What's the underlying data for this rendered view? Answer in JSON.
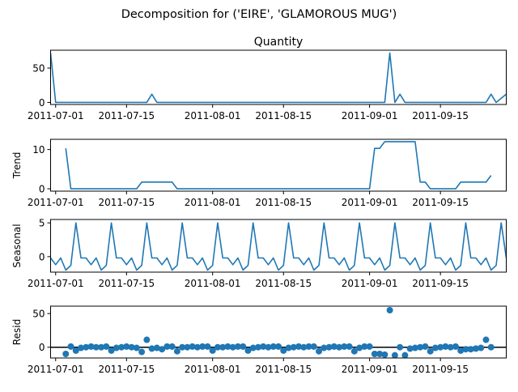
{
  "figure": {
    "title": "Decomposition for ('EIRE', 'GLAMOROUS  MUG')"
  },
  "colors": {
    "series": "#1f77b4",
    "axis": "#000000",
    "zero_line": "#000000"
  },
  "chart_data": [
    {
      "type": "line",
      "panel": "observed",
      "title": "Quantity",
      "ylabel": "",
      "start_date": "2011-06-30",
      "xlim": [
        "2011-06-30",
        "2011-09-28"
      ],
      "ylim": [
        -3,
        76
      ],
      "xticks": [
        "2011-07-01",
        "2011-07-15",
        "2011-08-01",
        "2011-08-15",
        "2011-09-01",
        "2011-09-15"
      ],
      "yticks": [
        0,
        50
      ],
      "segments": [
        {
          "x": [
            "2011-06-30",
            "2011-07-01",
            "2011-07-19",
            "2011-07-20",
            "2011-07-21",
            "2011-09-04",
            "2011-09-05",
            "2011-09-06",
            "2011-09-07",
            "2011-09-08",
            "2011-09-24",
            "2011-09-25",
            "2011-09-26",
            "2011-09-28"
          ],
          "y": [
            72,
            0,
            0,
            12,
            0,
            0,
            72,
            0,
            12,
            0,
            0,
            12,
            0,
            12
          ]
        }
      ]
    },
    {
      "type": "line",
      "panel": "trend",
      "title": "",
      "ylabel": "Trend",
      "xlim": [
        "2011-06-30",
        "2011-09-28"
      ],
      "ylim": [
        -0.6,
        12.6
      ],
      "xticks": [
        "2011-07-01",
        "2011-07-15",
        "2011-08-01",
        "2011-08-15",
        "2011-09-01",
        "2011-09-15"
      ],
      "yticks": [
        0,
        10
      ],
      "segments": [
        {
          "x": [
            "2011-07-03",
            "2011-07-04",
            "2011-07-17",
            "2011-07-18",
            "2011-07-24",
            "2011-07-25",
            "2011-09-01",
            "2011-09-02",
            "2011-09-03",
            "2011-09-04",
            "2011-09-10",
            "2011-09-11",
            "2011-09-12",
            "2011-09-13",
            "2011-09-18",
            "2011-09-19",
            "2011-09-24",
            "2011-09-25"
          ],
          "y": [
            10.3,
            0,
            0,
            1.7,
            1.7,
            0,
            0,
            10.3,
            10.3,
            12,
            12,
            1.7,
            1.7,
            0,
            0,
            1.7,
            1.7,
            3.4
          ]
        }
      ]
    },
    {
      "type": "line",
      "panel": "seasonal",
      "title": "",
      "ylabel": "Seasonal",
      "xlim": [
        "2011-06-30",
        "2011-09-28"
      ],
      "ylim": [
        -2.3,
        5.5
      ],
      "xticks": [
        "2011-07-01",
        "2011-07-15",
        "2011-08-01",
        "2011-08-15",
        "2011-09-01",
        "2011-09-15"
      ],
      "yticks": [
        0,
        5
      ],
      "period_values": [
        -0.2,
        -1.2,
        -0.2,
        -2.0,
        -1.3,
        5.0,
        -0.2
      ],
      "start_phase": 0,
      "x_start": "2011-06-30",
      "x_end": "2011-09-28"
    },
    {
      "type": "scatter",
      "panel": "resid",
      "title": "",
      "ylabel": "Resid",
      "xlim": [
        "2011-06-30",
        "2011-09-28"
      ],
      "ylim": [
        -16,
        61
      ],
      "xticks": [
        "2011-07-01",
        "2011-07-15",
        "2011-08-01",
        "2011-08-15",
        "2011-09-01",
        "2011-09-15"
      ],
      "yticks": [
        0,
        50
      ],
      "zero_line": true,
      "x": [
        "2011-07-03",
        "2011-07-04",
        "2011-07-05",
        "2011-07-06",
        "2011-07-07",
        "2011-07-08",
        "2011-07-09",
        "2011-07-10",
        "2011-07-11",
        "2011-07-12",
        "2011-07-13",
        "2011-07-14",
        "2011-07-15",
        "2011-07-16",
        "2011-07-17",
        "2011-07-18",
        "2011-07-19",
        "2011-07-20",
        "2011-07-21",
        "2011-07-22",
        "2011-07-23",
        "2011-07-24",
        "2011-07-25",
        "2011-07-26",
        "2011-07-27",
        "2011-07-28",
        "2011-07-29",
        "2011-07-30",
        "2011-07-31",
        "2011-08-01",
        "2011-08-02",
        "2011-08-03",
        "2011-08-04",
        "2011-08-05",
        "2011-08-06",
        "2011-08-07",
        "2011-08-08",
        "2011-08-09",
        "2011-08-10",
        "2011-08-11",
        "2011-08-12",
        "2011-08-13",
        "2011-08-14",
        "2011-08-15",
        "2011-08-16",
        "2011-08-17",
        "2011-08-18",
        "2011-08-19",
        "2011-08-20",
        "2011-08-21",
        "2011-08-22",
        "2011-08-23",
        "2011-08-24",
        "2011-08-25",
        "2011-08-26",
        "2011-08-27",
        "2011-08-28",
        "2011-08-29",
        "2011-08-30",
        "2011-08-31",
        "2011-09-01",
        "2011-09-02",
        "2011-09-03",
        "2011-09-04",
        "2011-09-05",
        "2011-09-06",
        "2011-09-07",
        "2011-09-08",
        "2011-09-09",
        "2011-09-10",
        "2011-09-11",
        "2011-09-12",
        "2011-09-13",
        "2011-09-14",
        "2011-09-15",
        "2011-09-16",
        "2011-09-17",
        "2011-09-18",
        "2011-09-19",
        "2011-09-20",
        "2011-09-21",
        "2011-09-22",
        "2011-09-23",
        "2011-09-24",
        "2011-09-25"
      ],
      "y": [
        -10,
        1,
        -5,
        -1,
        0,
        1,
        0,
        0,
        1,
        -5,
        -1,
        0,
        1,
        0,
        -1,
        -7,
        11,
        -2,
        -1,
        -3,
        1,
        1,
        -6,
        0,
        0,
        1,
        0,
        1,
        1,
        -5,
        0,
        0,
        1,
        0,
        1,
        1,
        -5,
        -1,
        0,
        1,
        0,
        1,
        1,
        -5,
        -1,
        0,
        1,
        0,
        1,
        1,
        -6,
        -1,
        0,
        1,
        0,
        1,
        1,
        -6,
        -1,
        1,
        1,
        -10,
        -10,
        -11,
        55,
        -12,
        0,
        -12,
        -2,
        -1,
        0,
        1,
        -6,
        -1,
        0,
        1,
        0,
        1,
        -5,
        -3,
        -3,
        -2,
        -1,
        11,
        0
      ]
    }
  ]
}
